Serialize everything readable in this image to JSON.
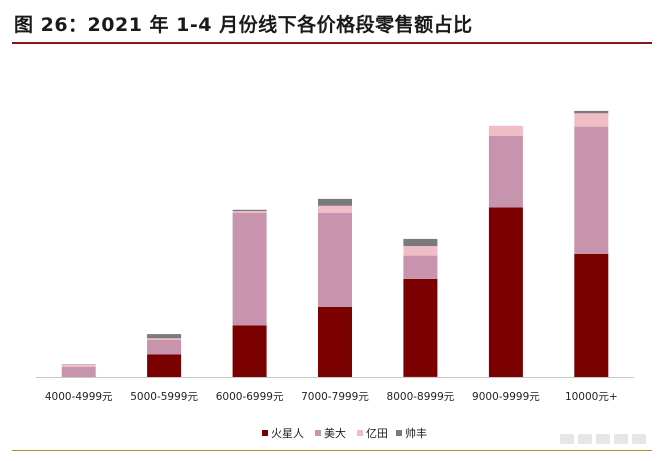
{
  "title": "图 26：2021 年 1-4 月份线下各价格段零售额占比",
  "colors": {
    "火星人": "#7b0000",
    "美大": "#c894ad",
    "亿田": "#f2bcc6",
    "帅丰": "#7a7a7a",
    "axis": "#c8c8c8",
    "title_rule": "#8b1414",
    "bottom_rule": "#b38b2d"
  },
  "chart_data": {
    "type": "bar",
    "stacked": true,
    "title": "",
    "xlabel": "",
    "ylabel": "",
    "y_axis_visible": false,
    "grid": false,
    "legend_position": "bottom",
    "ylim": [
      0,
      100
    ],
    "categories": [
      "4000-4999元",
      "5000-5999元",
      "6000-6999元",
      "7000-7999元",
      "8000-8999元",
      "9000-9999元",
      "10000元+"
    ],
    "series": [
      {
        "name": "火星人",
        "values": [
          0,
          8.5,
          19.5,
          26.5,
          37,
          64,
          46.5
        ]
      },
      {
        "name": "美大",
        "values": [
          3.8,
          5.5,
          42.5,
          35.5,
          8.8,
          27,
          48
        ]
      },
      {
        "name": "亿田",
        "values": [
          0.9,
          0.6,
          0.6,
          2.6,
          3.6,
          3.8,
          5
        ]
      },
      {
        "name": "帅丰",
        "values": [
          0.1,
          1.6,
          0.5,
          2.6,
          2.7,
          0,
          0.9
        ]
      }
    ]
  }
}
